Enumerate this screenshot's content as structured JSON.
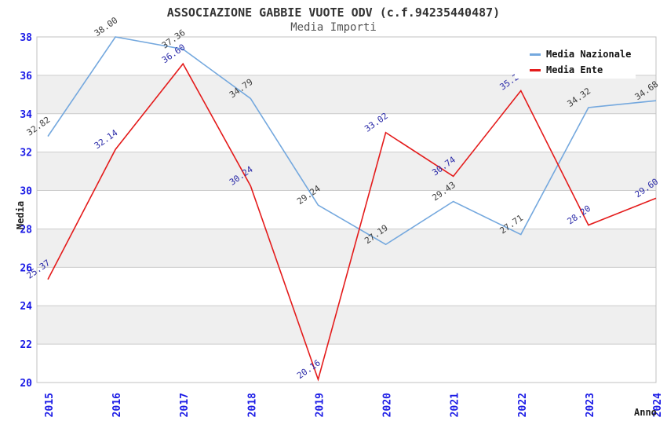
{
  "chart_data": {
    "type": "line",
    "title": "ASSOCIAZIONE GABBIE VUOTE ODV (c.f.94235440487)",
    "subtitle": "Media Importi",
    "xlabel": "Anno",
    "ylabel": "Media",
    "x": [
      "2015",
      "2016",
      "2017",
      "2018",
      "2019",
      "2020",
      "2021",
      "2022",
      "2023",
      "2024"
    ],
    "ylim": [
      20,
      38
    ],
    "ytick_step": 2,
    "grid": "horizontal",
    "bands": "alternating-white-gray-from-top",
    "legend_position": "top-right",
    "series": [
      {
        "name": "Media Nazionale",
        "color": "#74A8DE",
        "label_color": "#3C3C3C",
        "values": [
          32.82,
          38.0,
          37.36,
          34.79,
          29.24,
          27.19,
          29.43,
          27.71,
          34.32,
          34.68
        ]
      },
      {
        "name": "Media Ente",
        "color": "#E41B1B",
        "label_color": "#2A2AA8",
        "values": [
          25.37,
          32.14,
          36.6,
          30.24,
          20.16,
          33.02,
          30.74,
          35.2,
          28.2,
          29.6
        ]
      }
    ],
    "colors": {
      "tick": "#1A1AE6",
      "grid": "#CCCCCC",
      "band": "#EFEFEF",
      "border": "#C0C0C0",
      "title": "#333333",
      "subtitle": "#555555",
      "axis_label": "#222222",
      "background": "#FFFFFF"
    }
  }
}
